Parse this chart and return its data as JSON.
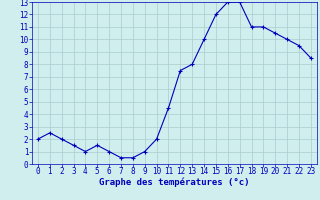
{
  "hours": [
    0,
    1,
    2,
    3,
    4,
    5,
    6,
    7,
    8,
    9,
    10,
    11,
    12,
    13,
    14,
    15,
    16,
    17,
    18,
    19,
    20,
    21,
    22,
    23
  ],
  "temps": [
    2,
    2.5,
    2,
    1.5,
    1,
    1.5,
    1,
    0.5,
    0.5,
    1,
    2,
    4.5,
    7.5,
    8,
    10,
    12,
    13,
    13,
    11,
    11,
    10.5,
    10,
    9.5,
    8.5
  ],
  "line_color": "#0000bb",
  "marker_color": "#0000bb",
  "bg_color": "#d0eeee",
  "grid_color": "#aacccc",
  "xlim": [
    -0.5,
    23.5
  ],
  "ylim": [
    0,
    13
  ],
  "xlabel": "Graphe des températures (°c)",
  "yticks": [
    0,
    1,
    2,
    3,
    4,
    5,
    6,
    7,
    8,
    9,
    10,
    11,
    12,
    13
  ],
  "xticks": [
    0,
    1,
    2,
    3,
    4,
    5,
    6,
    7,
    8,
    9,
    10,
    11,
    12,
    13,
    14,
    15,
    16,
    17,
    18,
    19,
    20,
    21,
    22,
    23
  ],
  "axis_color": "#0000bb",
  "xlabel_fontsize": 6.5,
  "tick_fontsize": 5.5
}
